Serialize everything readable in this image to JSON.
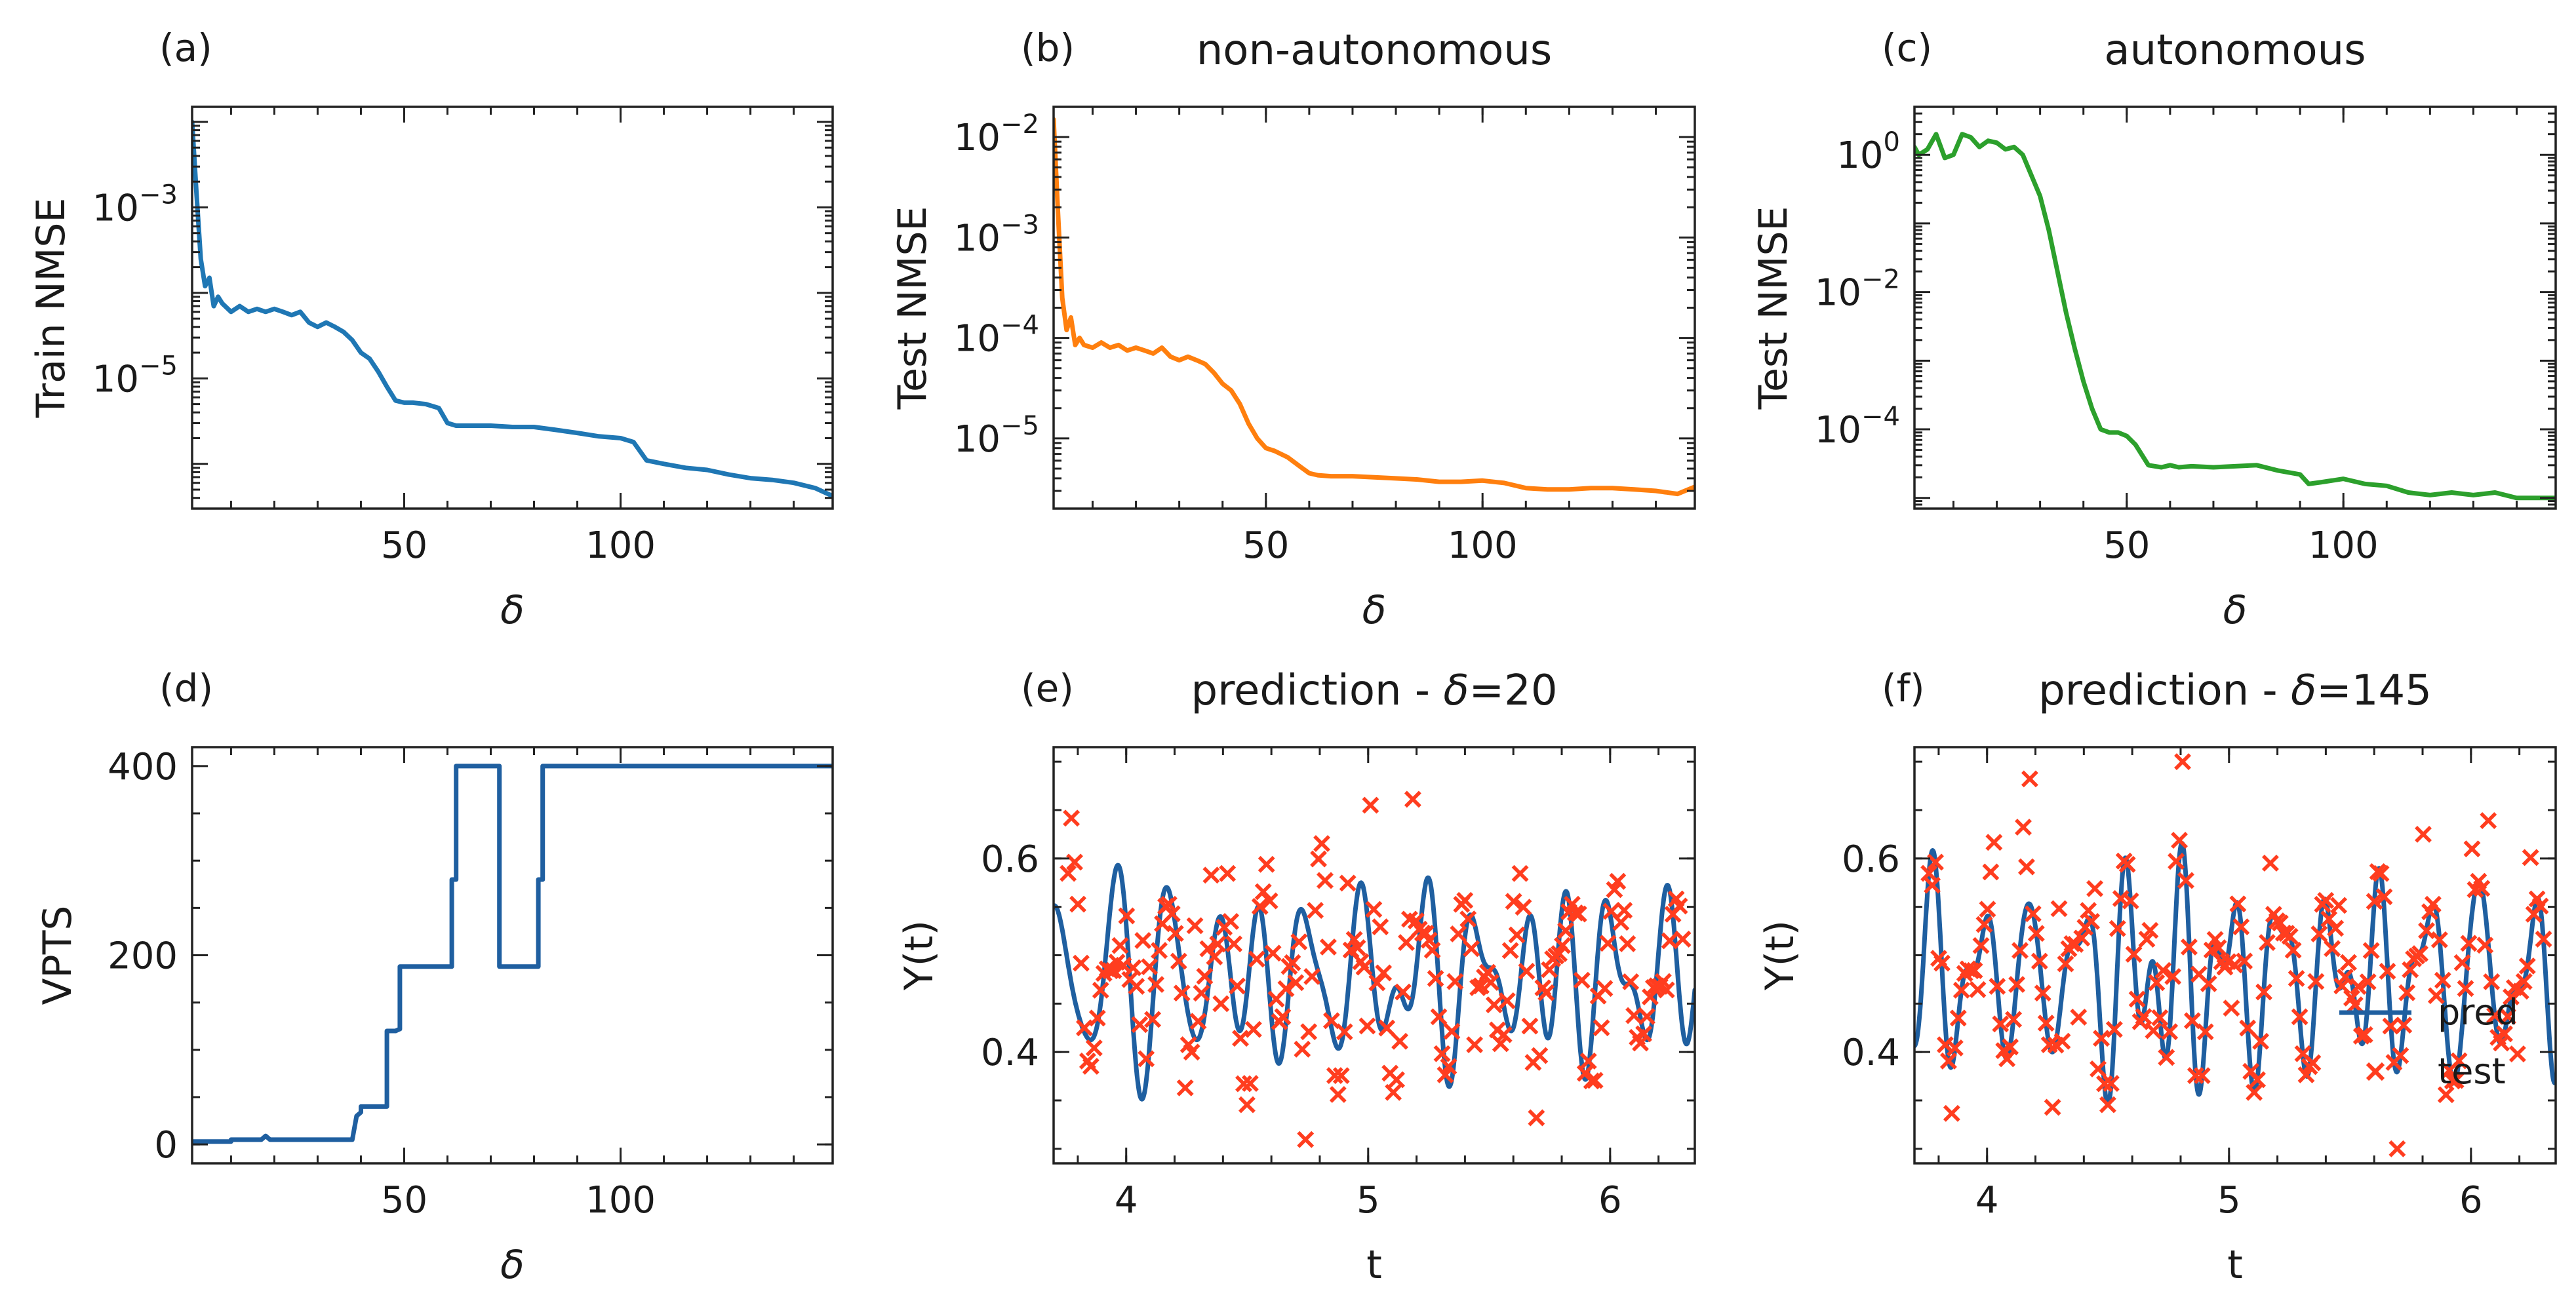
{
  "chart_data": [
    {
      "type": "line",
      "panel_label": "(a)",
      "title": "",
      "xlabel": "δ",
      "ylabel": "Train NMSE",
      "xlim": [
        1,
        149
      ],
      "ylim": [
        3e-07,
        0.015
      ],
      "log_y": true,
      "x_ticks": [
        50,
        100
      ],
      "y_ticks": [
        {
          "value": 0.001,
          "base": "10",
          "exp": "−3"
        },
        {
          "value": 1e-05,
          "base": "10",
          "exp": "−5"
        }
      ],
      "color": "#1f77b4",
      "series": [
        {
          "x": [
            1,
            2,
            3,
            4,
            5,
            6,
            7,
            8,
            10,
            12,
            14,
            16,
            18,
            20,
            22,
            24,
            26,
            28,
            30,
            32,
            34,
            36,
            38,
            40,
            42,
            44,
            46,
            48,
            50,
            52,
            55,
            58,
            60,
            62,
            65,
            70,
            75,
            80,
            85,
            90,
            95,
            100,
            103,
            106,
            110,
            115,
            120,
            125,
            130,
            135,
            140,
            145,
            149
          ],
          "y": [
            0.01,
            0.0015,
            0.00025,
            0.00012,
            0.00015,
            7e-05,
            9e-05,
            7.5e-05,
            6e-05,
            7e-05,
            6e-05,
            6.5e-05,
            6e-05,
            6.5e-05,
            6e-05,
            5.5e-05,
            6e-05,
            4.5e-05,
            4e-05,
            4.5e-05,
            4e-05,
            3.5e-05,
            2.8e-05,
            2e-05,
            1.7e-05,
            1.2e-05,
            8e-06,
            5.5e-06,
            5.2e-06,
            5.2e-06,
            5e-06,
            4.5e-06,
            3e-06,
            2.8e-06,
            2.8e-06,
            2.8e-06,
            2.7e-06,
            2.7e-06,
            2.5e-06,
            2.3e-06,
            2.1e-06,
            2e-06,
            1.8e-06,
            1.1e-06,
            1e-06,
            9e-07,
            8.5e-07,
            7.5e-07,
            6.8e-07,
            6.5e-07,
            6e-07,
            5.2e-07,
            4.2e-07
          ]
        }
      ]
    },
    {
      "type": "line",
      "panel_label": "(b)",
      "title": "non-autonomous",
      "xlabel": "δ",
      "ylabel": "Test NMSE",
      "xlim": [
        1,
        149
      ],
      "ylim": [
        2e-06,
        0.02
      ],
      "log_y": true,
      "x_ticks": [
        50,
        100
      ],
      "y_ticks": [
        {
          "value": 0.01,
          "base": "10",
          "exp": "−2"
        },
        {
          "value": 0.001,
          "base": "10",
          "exp": "−3"
        },
        {
          "value": 0.0001,
          "base": "10",
          "exp": "−4"
        },
        {
          "value": 1e-05,
          "base": "10",
          "exp": "−5"
        }
      ],
      "color": "#ff7f0e",
      "series": [
        {
          "x": [
            1,
            2,
            3,
            4,
            5,
            6,
            7,
            8,
            10,
            12,
            14,
            16,
            18,
            20,
            22,
            24,
            26,
            28,
            30,
            32,
            34,
            36,
            38,
            40,
            42,
            44,
            46,
            48,
            50,
            52,
            55,
            58,
            60,
            62,
            65,
            70,
            75,
            80,
            85,
            90,
            95,
            100,
            105,
            110,
            115,
            120,
            125,
            130,
            135,
            140,
            145,
            149
          ],
          "y": [
            0.015,
            0.0018,
            0.00025,
            0.00012,
            0.00016,
            8.5e-05,
            0.0001,
            8.5e-05,
            8e-05,
            9e-05,
            8e-05,
            8.5e-05,
            7.5e-05,
            8e-05,
            7.5e-05,
            7e-05,
            8e-05,
            6.5e-05,
            6e-05,
            6.5e-05,
            6e-05,
            5.5e-05,
            4.5e-05,
            3.5e-05,
            3e-05,
            2.2e-05,
            1.4e-05,
            1e-05,
            8e-06,
            7.5e-06,
            6.5e-06,
            5.2e-06,
            4.5e-06,
            4.3e-06,
            4.2e-06,
            4.2e-06,
            4.1e-06,
            4e-06,
            3.9e-06,
            3.7e-06,
            3.7e-06,
            3.8e-06,
            3.6e-06,
            3.2e-06,
            3.1e-06,
            3.1e-06,
            3.2e-06,
            3.2e-06,
            3.1e-06,
            3e-06,
            2.8e-06,
            3.3e-06
          ]
        }
      ]
    },
    {
      "type": "line",
      "panel_label": "(c)",
      "title": "autonomous",
      "xlabel": "δ",
      "ylabel": "Test NMSE",
      "xlim": [
        1,
        149
      ],
      "ylim": [
        7e-06,
        5
      ],
      "log_y": true,
      "x_ticks": [
        50,
        100
      ],
      "y_ticks": [
        {
          "value": 1,
          "base": "10",
          "exp": "0"
        },
        {
          "value": 0.01,
          "base": "10",
          "exp": "−2"
        },
        {
          "value": 0.0001,
          "base": "10",
          "exp": "−4"
        }
      ],
      "color": "#2ca02c",
      "series": [
        {
          "x": [
            1,
            2,
            4,
            6,
            8,
            10,
            12,
            14,
            16,
            18,
            20,
            22,
            24,
            26,
            28,
            30,
            32,
            34,
            36,
            38,
            40,
            42,
            44,
            46,
            48,
            50,
            52,
            55,
            58,
            60,
            62,
            65,
            70,
            75,
            80,
            85,
            90,
            92,
            95,
            100,
            105,
            110,
            115,
            120,
            125,
            130,
            135,
            140,
            145,
            149
          ],
          "y": [
            1.3,
            1.0,
            1.2,
            2.0,
            0.9,
            1.0,
            2.0,
            1.8,
            1.3,
            1.6,
            1.5,
            1.2,
            1.3,
            1.0,
            0.5,
            0.25,
            0.08,
            0.02,
            0.005,
            0.0015,
            0.0005,
            0.0002,
            0.0001,
            9e-05,
            9e-05,
            8e-05,
            6e-05,
            3e-05,
            2.8e-05,
            3e-05,
            2.8e-05,
            2.9e-05,
            2.8e-05,
            2.9e-05,
            3e-05,
            2.5e-05,
            2.2e-05,
            1.6e-05,
            1.7e-05,
            1.9e-05,
            1.6e-05,
            1.5e-05,
            1.2e-05,
            1.1e-05,
            1.2e-05,
            1.1e-05,
            1.2e-05,
            1e-05,
            1e-05,
            1e-05
          ]
        }
      ]
    },
    {
      "type": "line",
      "panel_label": "(d)",
      "title": "",
      "xlabel": "δ",
      "ylabel": "VPTS",
      "xlim": [
        1,
        149
      ],
      "ylim": [
        -20,
        420
      ],
      "log_y": false,
      "x_ticks": [
        50,
        100
      ],
      "y_ticks": [
        {
          "value": 0,
          "label": "0"
        },
        {
          "value": 200,
          "label": "200"
        },
        {
          "value": 400,
          "label": "400"
        }
      ],
      "color": "#1f5fa0",
      "series": [
        {
          "x": [
            1,
            10,
            10,
            17,
            18,
            19,
            20,
            38,
            39,
            40,
            40,
            45,
            46,
            46,
            48,
            49,
            49,
            50,
            51,
            51,
            61,
            61,
            62,
            62,
            72,
            72,
            74,
            74,
            81,
            81,
            82,
            82,
            149
          ],
          "y": [
            3,
            3,
            5,
            5,
            9,
            5,
            5,
            5,
            30,
            34,
            40,
            40,
            40,
            120,
            120,
            122,
            188,
            188,
            188,
            188,
            188,
            280,
            280,
            400,
            400,
            188,
            188,
            188,
            188,
            280,
            280,
            400,
            400
          ]
        }
      ]
    },
    {
      "type": "line",
      "panel_label": "(e)",
      "title": "prediction - δ=20",
      "title_prefix": "prediction - ",
      "title_delta": "δ",
      "title_suffix": "=20",
      "xlabel": "t",
      "ylabel": "Y(t)",
      "xlim": [
        3.7,
        6.35
      ],
      "ylim": [
        0.285,
        0.715
      ],
      "log_y": false,
      "x_ticks": [
        4,
        5,
        6
      ],
      "y_ticks": [
        {
          "value": 0.4,
          "label": "0.4"
        },
        {
          "value": 0.6,
          "label": "0.6"
        }
      ],
      "series": [
        {
          "name": "pred",
          "color": "#1f5fa0",
          "role": "line",
          "seed": 11
        },
        {
          "name": "test",
          "color": "#ff3d1f",
          "role": "markers",
          "seed": 29
        }
      ]
    },
    {
      "type": "line",
      "panel_label": "(f)",
      "title": "prediction - δ=145",
      "title_prefix": "prediction - ",
      "title_delta": "δ",
      "title_suffix": "=145",
      "xlabel": "t",
      "ylabel": "Y(t)",
      "xlim": [
        3.7,
        6.35
      ],
      "ylim": [
        0.285,
        0.715
      ],
      "log_y": false,
      "x_ticks": [
        4,
        5,
        6
      ],
      "y_ticks": [
        {
          "value": 0.4,
          "label": "0.4"
        },
        {
          "value": 0.6,
          "label": "0.6"
        }
      ],
      "legend": {
        "position": "lower-right",
        "entries": [
          "pred",
          "test"
        ]
      },
      "series": [
        {
          "name": "pred",
          "color": "#1f5fa0",
          "role": "line",
          "seed": 29
        },
        {
          "name": "test",
          "color": "#ff3d1f",
          "role": "markers",
          "seed": 29
        }
      ]
    }
  ]
}
